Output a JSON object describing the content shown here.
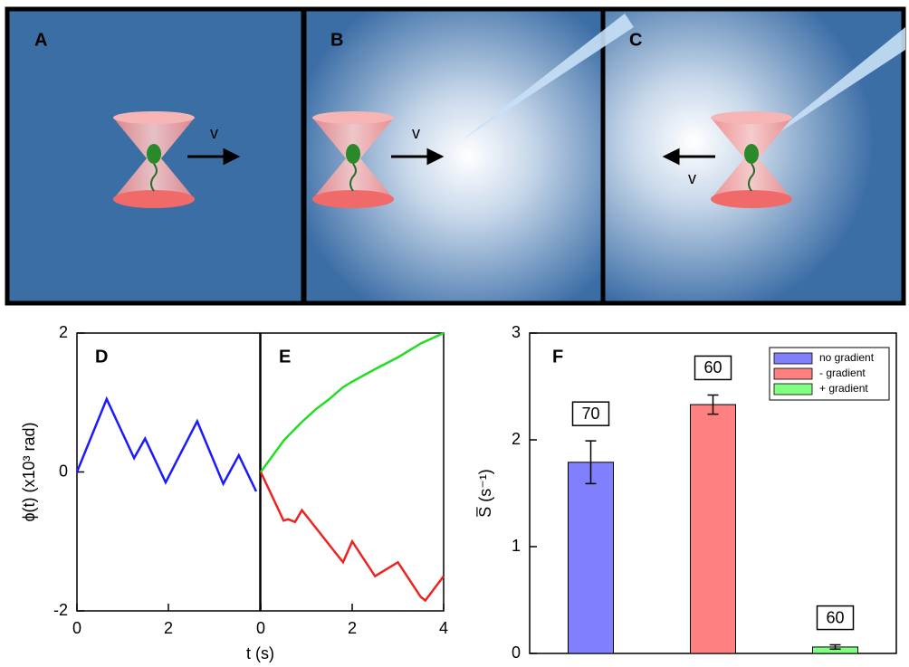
{
  "illustration": {
    "labels": [
      "A",
      "B",
      "C"
    ],
    "velocity_label": "v"
  },
  "chart_data": [
    {
      "type": "line",
      "label": "D",
      "y_label": "ϕ(t)  (x10³ rad)",
      "xlim": [
        0,
        4
      ],
      "xticks": [
        0,
        2
      ],
      "ylim": [
        -2,
        2
      ],
      "yticks": [
        -2,
        0,
        2
      ],
      "x": [
        0,
        0.65,
        1.25,
        1.49,
        1.94,
        2.63,
        3.2,
        3.54,
        3.92
      ],
      "series": [
        {
          "color": "#1a1aff",
          "values": [
            0,
            1.05,
            0.2,
            0.48,
            -0.15,
            0.73,
            -0.17,
            0.24,
            -0.28
          ]
        }
      ]
    },
    {
      "type": "line",
      "label": "E",
      "x_label": "t (s)",
      "xlim": [
        0,
        4
      ],
      "xticks": [
        0,
        2,
        4
      ],
      "ylim": [
        -2,
        2
      ],
      "x": [
        0,
        0.5,
        0.6,
        0.75,
        0.9,
        1.2,
        1.5,
        1.8,
        2.0,
        2.5,
        3.0,
        3.5,
        3.6,
        4
      ],
      "series": [
        {
          "color": "#22dd22",
          "values": [
            0,
            0.45,
            0.52,
            0.62,
            0.72,
            0.9,
            1.05,
            1.22,
            1.3,
            1.48,
            1.65,
            1.85,
            1.88,
            2.0
          ]
        },
        {
          "color": "#ee2222",
          "values": [
            0,
            -0.7,
            -0.68,
            -0.72,
            -0.55,
            -0.8,
            -1.05,
            -1.3,
            -1.0,
            -1.5,
            -1.3,
            -1.8,
            -1.85,
            -1.5
          ]
        }
      ]
    },
    {
      "type": "bar",
      "label": "F",
      "y_label": "S̅ (s⁻¹)",
      "ylim": [
        0,
        3
      ],
      "yticks": [
        0,
        1,
        2,
        3
      ],
      "legend": "top-right",
      "series": [
        {
          "name": "no gradient",
          "color": "#8080ff",
          "values": [
            1.79
          ],
          "errors": [
            0.2
          ],
          "count": 70
        },
        {
          "name": "-   gradient",
          "color": "#ff8080",
          "values": [
            2.33
          ],
          "errors": [
            0.09
          ],
          "count": 60
        },
        {
          "name": "+  gradient",
          "color": "#80ff80",
          "values": [
            0.06
          ],
          "errors": [
            0.02
          ],
          "count": 60
        }
      ]
    }
  ]
}
